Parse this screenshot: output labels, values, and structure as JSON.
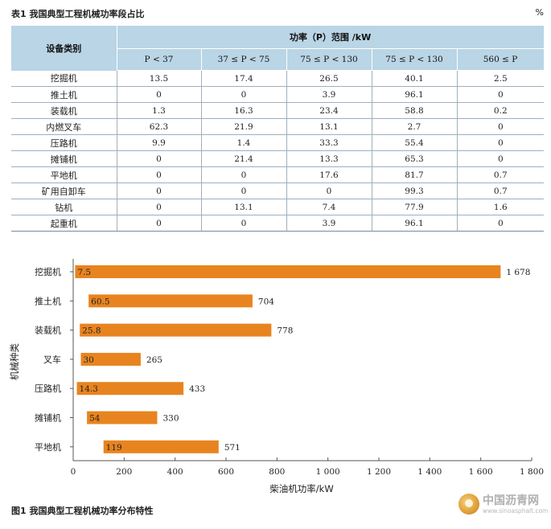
{
  "table": {
    "title": "表1 我国典型工程机械功率段占比",
    "unit": "%",
    "header": {
      "category": "设备类别",
      "group": "功率（P）范围 /kW",
      "ranges": [
        "P < 37",
        "37 ≤ P < 75",
        "75 ≤ P < 130",
        "75 ≤ P < 130",
        "560 ≤ P"
      ]
    },
    "rows": [
      {
        "name": "挖掘机",
        "values": [
          "13.5",
          "17.4",
          "26.5",
          "40.1",
          "2.5"
        ]
      },
      {
        "name": "推土机",
        "values": [
          "0",
          "0",
          "3.9",
          "96.1",
          "0"
        ]
      },
      {
        "name": "装载机",
        "values": [
          "1.3",
          "16.3",
          "23.4",
          "58.8",
          "0.2"
        ]
      },
      {
        "name": "内燃叉车",
        "values": [
          "62.3",
          "21.9",
          "13.1",
          "2.7",
          "0"
        ]
      },
      {
        "name": "压路机",
        "values": [
          "9.9",
          "1.4",
          "33.3",
          "55.4",
          "0"
        ]
      },
      {
        "name": "摊铺机",
        "values": [
          "0",
          "21.4",
          "13.3",
          "65.3",
          "0"
        ]
      },
      {
        "name": "平地机",
        "values": [
          "0",
          "0",
          "17.6",
          "81.7",
          "0.7"
        ]
      },
      {
        "name": "矿用自卸车",
        "values": [
          "0",
          "0",
          "0",
          "99.3",
          "0.7"
        ]
      },
      {
        "name": "钻机",
        "values": [
          "0",
          "13.1",
          "7.4",
          "77.9",
          "1.6"
        ]
      },
      {
        "name": "起重机",
        "values": [
          "0",
          "0",
          "3.9",
          "96.1",
          "0"
        ]
      }
    ]
  },
  "chart_data": {
    "type": "bar",
    "orientation": "horizontal",
    "title": "图1 我国典型工程机械功率分布特性",
    "xlabel": "柴油机功率/kW",
    "ylabel": "机械种类",
    "xlim": [
      0,
      1800
    ],
    "xticks": [
      "0",
      "200",
      "400",
      "600",
      "800",
      "1 000",
      "1 200",
      "1 400",
      "1 600",
      "1 800"
    ],
    "xtick_values": [
      0,
      200,
      400,
      600,
      800,
      1000,
      1200,
      1400,
      1600,
      1800
    ],
    "grid": false,
    "bar_color": "#e8841f",
    "categories": [
      "挖掘机",
      "推土机",
      "装载机",
      "叉车",
      "压路机",
      "摊铺机",
      "平地机"
    ],
    "min_values": [
      7.5,
      60.5,
      25.8,
      30,
      14.3,
      54,
      119
    ],
    "max_values": [
      1678,
      704,
      778,
      265,
      433,
      330,
      571
    ],
    "min_labels": [
      "7.5",
      "60.5",
      "25.8",
      "30",
      "14.3",
      "54",
      "119"
    ],
    "max_labels": [
      "1 678",
      "704",
      "778",
      "265",
      "433",
      "330",
      "571"
    ]
  },
  "watermark": {
    "name": "中国沥青网",
    "url": "www.sinoasphalt.com"
  }
}
